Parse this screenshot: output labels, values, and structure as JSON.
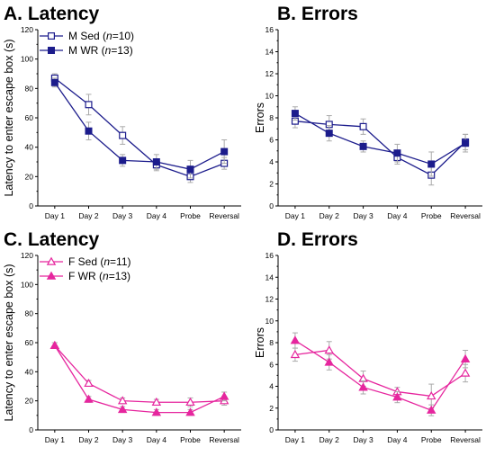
{
  "chart_data": [
    {
      "type": "line",
      "title": "A. Latency",
      "ylabel": "Latency to enter escape box (s)",
      "xlabel": "",
      "categories": [
        "Day 1",
        "Day 2",
        "Day 3",
        "Day 4",
        "Probe",
        "Reversal"
      ],
      "ylim": [
        0,
        120
      ],
      "yticks": [
        0,
        20,
        40,
        60,
        80,
        100,
        120
      ],
      "legend_position": "top-left",
      "color": "#1c1c8c",
      "series": [
        {
          "name": "M Sed (n=10)",
          "marker": "open-square",
          "values": [
            87,
            69,
            48,
            28,
            20,
            29
          ],
          "errors": [
            3,
            7,
            6,
            4,
            4,
            4
          ]
        },
        {
          "name": "M WR (n=13)",
          "marker": "filled-square",
          "values": [
            84,
            51,
            31,
            30,
            25,
            37
          ],
          "errors": [
            3,
            6,
            4,
            5,
            6,
            8
          ]
        }
      ]
    },
    {
      "type": "line",
      "title": "B. Errors",
      "ylabel": "Errors",
      "xlabel": "",
      "categories": [
        "Day 1",
        "Day 2",
        "Day 3",
        "Day 4",
        "Probe",
        "Reversal"
      ],
      "ylim": [
        0,
        16
      ],
      "yticks": [
        0,
        2,
        4,
        6,
        8,
        10,
        12,
        14,
        16
      ],
      "color": "#1c1c8c",
      "series": [
        {
          "name": "M Sed",
          "marker": "open-square",
          "values": [
            7.7,
            7.4,
            7.2,
            4.4,
            2.8,
            5.8
          ],
          "errors": [
            0.6,
            0.8,
            0.7,
            0.6,
            0.9,
            0.7
          ]
        },
        {
          "name": "M WR",
          "marker": "filled-square",
          "values": [
            8.4,
            6.6,
            5.4,
            4.8,
            3.8,
            5.7
          ],
          "errors": [
            0.6,
            0.7,
            0.5,
            0.8,
            1.1,
            0.8
          ]
        }
      ]
    },
    {
      "type": "line",
      "title": "C. Latency",
      "ylabel": "Latency to enter escape box (s)",
      "xlabel": "",
      "categories": [
        "Day 1",
        "Day 2",
        "Day 3",
        "Day 4",
        "Probe",
        "Reversal"
      ],
      "ylim": [
        0,
        120
      ],
      "yticks": [
        0,
        20,
        40,
        60,
        80,
        100,
        120
      ],
      "legend_position": "top-left",
      "color": "#e6269e",
      "series": [
        {
          "name": "F Sed (n=11)",
          "marker": "open-triangle",
          "values": [
            58,
            32,
            20,
            19,
            19,
            20
          ],
          "errors": [
            2,
            2,
            2,
            2,
            3,
            3
          ]
        },
        {
          "name": "F WR (n=13)",
          "marker": "filled-triangle",
          "values": [
            58,
            21,
            14,
            12,
            12,
            23
          ],
          "errors": [
            2,
            2,
            2,
            2,
            2,
            3
          ]
        }
      ]
    },
    {
      "type": "line",
      "title": "D. Errors",
      "ylabel": "Errors",
      "xlabel": "",
      "categories": [
        "Day 1",
        "Day 2",
        "Day 3",
        "Day 4",
        "Probe",
        "Reversal"
      ],
      "ylim": [
        0,
        16
      ],
      "yticks": [
        0,
        2,
        4,
        6,
        8,
        10,
        12,
        14,
        16
      ],
      "color": "#e6269e",
      "series": [
        {
          "name": "F Sed",
          "marker": "open-triangle",
          "values": [
            6.9,
            7.3,
            4.7,
            3.5,
            3.1,
            5.2
          ],
          "errors": [
            0.6,
            0.8,
            0.7,
            0.4,
            1.1,
            0.8
          ]
        },
        {
          "name": "F WR",
          "marker": "filled-triangle",
          "values": [
            8.2,
            6.2,
            3.9,
            3.0,
            1.8,
            6.5
          ],
          "errors": [
            0.7,
            0.7,
            0.6,
            0.5,
            0.5,
            0.8
          ]
        }
      ]
    }
  ]
}
